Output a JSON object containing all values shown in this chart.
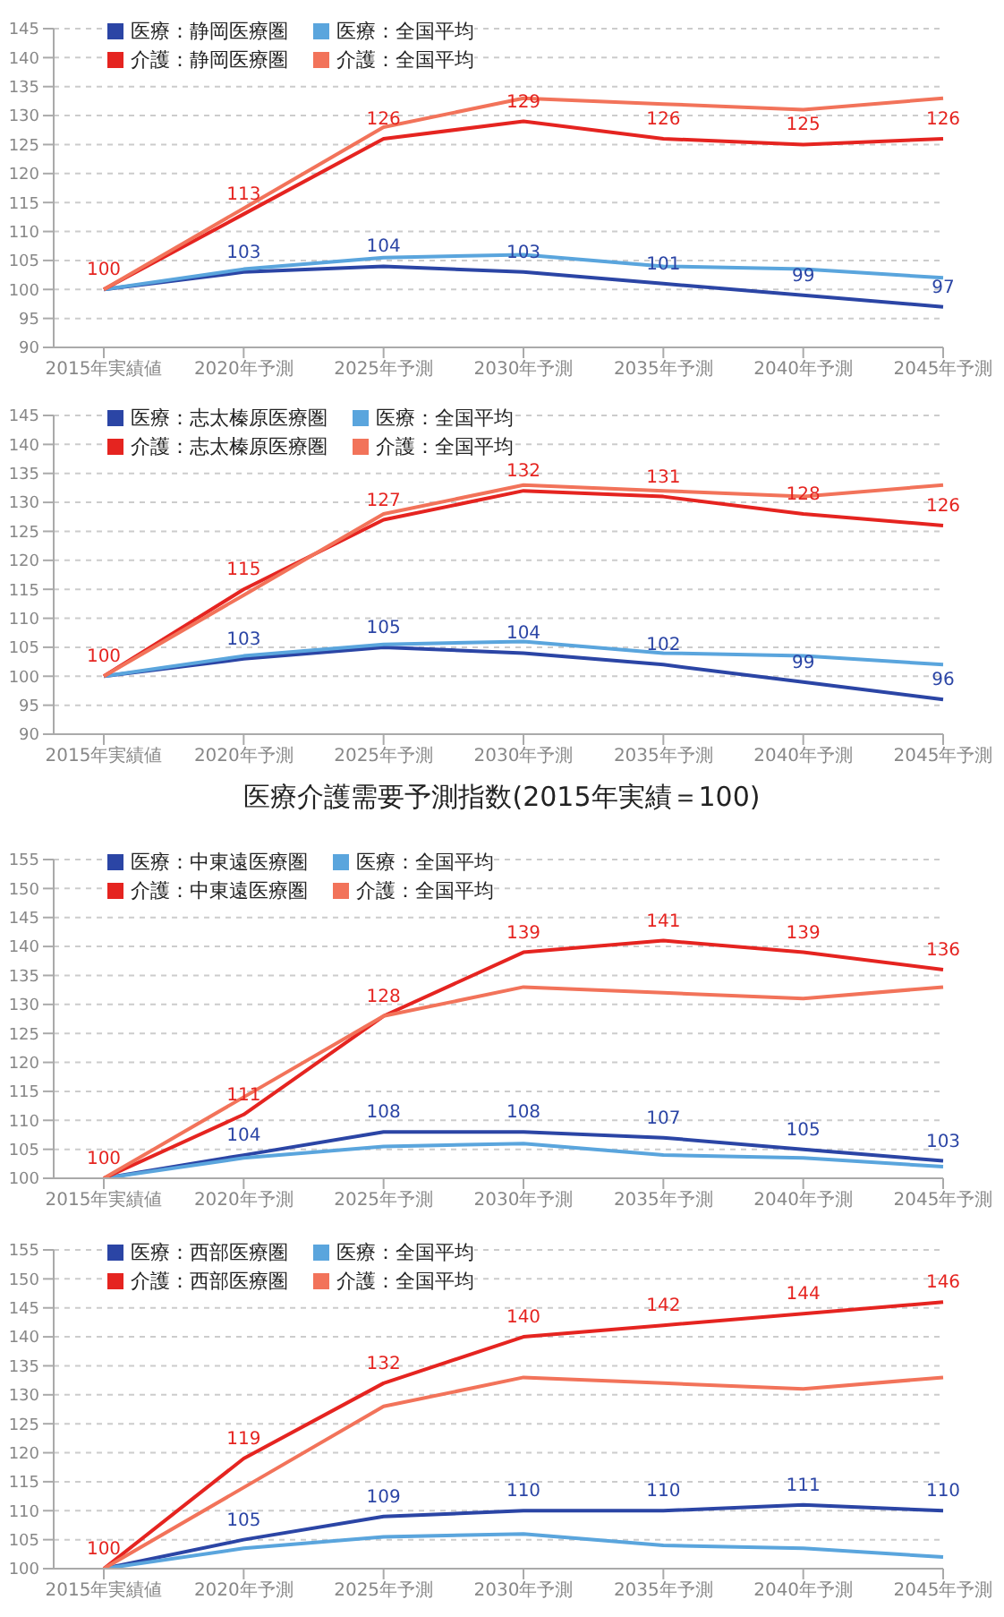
{
  "chart_data": [
    {
      "type": "line",
      "categories": [
        "2015年実績値",
        "2020年予測",
        "2025年予測",
        "2030年予測",
        "2035年予測",
        "2040年予測",
        "2045年予測"
      ],
      "ylim": [
        90,
        145
      ],
      "yticks": [
        90,
        95,
        100,
        105,
        110,
        115,
        120,
        125,
        130,
        135,
        140,
        145
      ],
      "grid": "y",
      "legend": "top left",
      "marker": "none",
      "series": [
        {
          "name": "医療：静岡医療圏",
          "color": "#2b45a5",
          "values": [
            100,
            103,
            104,
            103,
            101,
            99,
            97
          ],
          "value_labels": [
            null,
            "103",
            "104",
            "103",
            "101",
            "99",
            "97"
          ]
        },
        {
          "name": "医療：全国平均",
          "color": "#5aa5dd",
          "values": [
            100,
            103.5,
            105.5,
            106,
            104,
            103.5,
            102
          ]
        },
        {
          "name": "介護：静岡医療圏",
          "color": "#e52420",
          "values": [
            100,
            113,
            126,
            129,
            126,
            125,
            126
          ],
          "value_labels": [
            "100",
            "113",
            "126",
            "129",
            "126",
            "125",
            "126"
          ]
        },
        {
          "name": "介護：全国平均",
          "color": "#f2735a",
          "values": [
            100,
            114,
            128,
            133,
            132,
            131,
            133
          ]
        }
      ]
    },
    {
      "type": "line",
      "categories": [
        "2015年実績値",
        "2020年予測",
        "2025年予測",
        "2030年予測",
        "2035年予測",
        "2040年予測",
        "2045年予測"
      ],
      "ylim": [
        90,
        145
      ],
      "yticks": [
        90,
        95,
        100,
        105,
        110,
        115,
        120,
        125,
        130,
        135,
        140,
        145
      ],
      "grid": "y",
      "legend": "top left",
      "marker": "none",
      "series": [
        {
          "name": "医療：志太榛原医療圏",
          "color": "#2b45a5",
          "values": [
            100,
            103,
            105,
            104,
            102,
            99,
            96
          ],
          "value_labels": [
            null,
            "103",
            "105",
            "104",
            "102",
            "99",
            "96"
          ]
        },
        {
          "name": "医療：全国平均",
          "color": "#5aa5dd",
          "values": [
            100,
            103.5,
            105.5,
            106,
            104,
            103.5,
            102
          ]
        },
        {
          "name": "介護：志太榛原医療圏",
          "color": "#e52420",
          "values": [
            100,
            115,
            127,
            132,
            131,
            128,
            126
          ],
          "value_labels": [
            "100",
            "115",
            "127",
            "132",
            "131",
            "128",
            "126"
          ]
        },
        {
          "name": "介護：全国平均",
          "color": "#f2735a",
          "values": [
            100,
            114,
            128,
            133,
            132,
            131,
            133
          ]
        }
      ]
    },
    {
      "type": "line",
      "title": "医療介護需要予測指数(2015年実績＝100)",
      "categories": [
        "2015年実績値",
        "2020年予測",
        "2025年予測",
        "2030年予測",
        "2035年予測",
        "2040年予測",
        "2045年予測"
      ],
      "ylim": [
        100,
        155
      ],
      "yticks": [
        100,
        105,
        110,
        115,
        120,
        125,
        130,
        135,
        140,
        145,
        150,
        155
      ],
      "grid": "y",
      "legend": "top left",
      "marker": "none",
      "series": [
        {
          "name": "医療：中東遠医療圏",
          "color": "#2b45a5",
          "values": [
            100,
            104,
            108,
            108,
            107,
            105,
            103
          ],
          "value_labels": [
            null,
            "104",
            "108",
            "108",
            "107",
            "105",
            "103"
          ]
        },
        {
          "name": "医療：全国平均",
          "color": "#5aa5dd",
          "values": [
            100,
            103.5,
            105.5,
            106,
            104,
            103.5,
            102
          ]
        },
        {
          "name": "介護：中東遠医療圏",
          "color": "#e52420",
          "values": [
            100,
            111,
            128,
            139,
            141,
            139,
            136
          ],
          "value_labels": [
            "100",
            "111",
            "128",
            "139",
            "141",
            "139",
            "136"
          ]
        },
        {
          "name": "介護：全国平均",
          "color": "#f2735a",
          "values": [
            100,
            114,
            128,
            133,
            132,
            131,
            133
          ]
        }
      ]
    },
    {
      "type": "line",
      "categories": [
        "2015年実績値",
        "2020年予測",
        "2025年予測",
        "2030年予測",
        "2035年予測",
        "2040年予測",
        "2045年予測"
      ],
      "ylim": [
        100,
        155
      ],
      "yticks": [
        100,
        105,
        110,
        115,
        120,
        125,
        130,
        135,
        140,
        145,
        150,
        155
      ],
      "grid": "y",
      "legend": "top left",
      "marker": "none",
      "series": [
        {
          "name": "医療：西部医療圏",
          "color": "#2b45a5",
          "values": [
            100,
            105,
            109,
            110,
            110,
            111,
            110
          ],
          "value_labels": [
            null,
            "105",
            "109",
            "110",
            "110",
            "111",
            "110"
          ]
        },
        {
          "name": "医療：全国平均",
          "color": "#5aa5dd",
          "values": [
            100,
            103.5,
            105.5,
            106,
            104,
            103.5,
            102
          ]
        },
        {
          "name": "介護：西部医療圏",
          "color": "#e52420",
          "values": [
            100,
            119,
            132,
            140,
            142,
            144,
            146
          ],
          "value_labels": [
            "100",
            "119",
            "132",
            "140",
            "142",
            "144",
            "146"
          ]
        },
        {
          "name": "介護：全国平均",
          "color": "#f2735a",
          "values": [
            100,
            114,
            128,
            133,
            132,
            131,
            133
          ]
        }
      ]
    }
  ]
}
